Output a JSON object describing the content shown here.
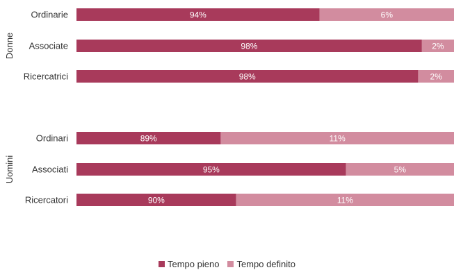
{
  "chart_data": {
    "type": "bar",
    "orientation": "horizontal",
    "stacked": true,
    "groups": [
      {
        "name": "Donne",
        "categories": [
          "Ordinarie",
          "Associate",
          "Ricercatrici"
        ],
        "labels": {
          "Tempo pieno": [
            "94%",
            "98%",
            "98%"
          ],
          "Tempo definito": [
            "6%",
            "2%",
            "2%"
          ]
        },
        "lengths": {
          "Tempo pieno": [
            64.4,
            91.5,
            90.5
          ],
          "Tempo definito": [
            35.6,
            8.5,
            9.5
          ]
        }
      },
      {
        "name": "Uomini",
        "categories": [
          "Ordinari",
          "Associati",
          "Ricercatori"
        ],
        "labels": {
          "Tempo pieno": [
            "89%",
            "95%",
            "90%"
          ],
          "Tempo definito": [
            "11%",
            "5%",
            "11%"
          ]
        },
        "lengths": {
          "Tempo pieno": [
            38.2,
            71.4,
            42.3
          ],
          "Tempo definito": [
            61.8,
            28.6,
            57.7
          ]
        }
      }
    ],
    "series": [
      {
        "name": "Tempo pieno",
        "color": "#a83a5b"
      },
      {
        "name": "Tempo definito",
        "color": "#d28c9f"
      }
    ],
    "legend_position": "bottom",
    "grid": false
  }
}
